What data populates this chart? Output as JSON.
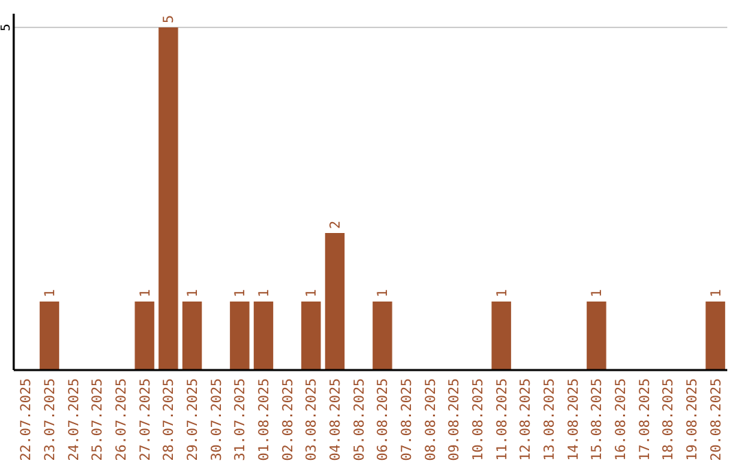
{
  "chart_data": {
    "type": "bar",
    "categories": [
      "22.07.2025",
      "23.07.2025",
      "24.07.2025",
      "25.07.2025",
      "26.07.2025",
      "27.07.2025",
      "28.07.2025",
      "29.07.2025",
      "30.07.2025",
      "31.07.2025",
      "01.08.2025",
      "02.08.2025",
      "03.08.2025",
      "04.08.2025",
      "05.08.2025",
      "06.08.2025",
      "07.08.2025",
      "08.08.2025",
      "09.08.2025",
      "10.08.2025",
      "11.08.2025",
      "12.08.2025",
      "13.08.2025",
      "14.08.2025",
      "15.08.2025",
      "16.08.2025",
      "17.08.2025",
      "18.08.2025",
      "19.08.2025",
      "20.08.2025"
    ],
    "values": [
      0,
      1,
      0,
      0,
      0,
      1,
      5,
      1,
      0,
      1,
      1,
      0,
      1,
      2,
      0,
      1,
      0,
      0,
      0,
      0,
      1,
      0,
      0,
      0,
      1,
      0,
      0,
      0,
      0,
      1
    ],
    "value_labels": [
      null,
      "1",
      null,
      null,
      null,
      "1",
      "5",
      "1",
      null,
      "1",
      "1",
      null,
      "1",
      "2",
      null,
      "1",
      null,
      null,
      null,
      null,
      "1",
      null,
      null,
      null,
      "1",
      null,
      null,
      null,
      null,
      "1"
    ],
    "color": "#a0522d",
    "ylim": [
      0,
      5.2
    ],
    "yticks": [
      5
    ],
    "grid": "y"
  }
}
